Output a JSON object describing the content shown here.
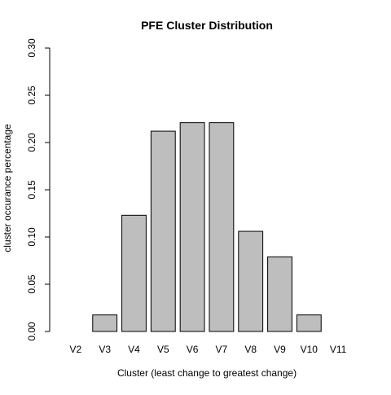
{
  "chart_data": {
    "type": "bar",
    "title": "PFE Cluster Distribution",
    "xlabel": "Cluster (least change to greatest change)",
    "ylabel": "cluster occurance percentage",
    "categories": [
      "V2",
      "V3",
      "V4",
      "V5",
      "V6",
      "V7",
      "V8",
      "V9",
      "V10",
      "V11"
    ],
    "values": [
      0.0,
      0.0175,
      0.123,
      0.212,
      0.221,
      0.221,
      0.106,
      0.079,
      0.0175,
      0.0
    ],
    "ylim": [
      0,
      0.3
    ],
    "yticks": [
      0.0,
      0.05,
      0.1,
      0.15,
      0.2,
      0.25,
      0.3
    ],
    "ytick_labels": [
      "0.00",
      "0.05",
      "0.10",
      "0.15",
      "0.20",
      "0.25",
      "0.30"
    ],
    "grid": false,
    "colors": {
      "bar_fill": "#bebebe",
      "bar_stroke": "#000000",
      "axis": "#000000",
      "text": "#000000"
    }
  }
}
